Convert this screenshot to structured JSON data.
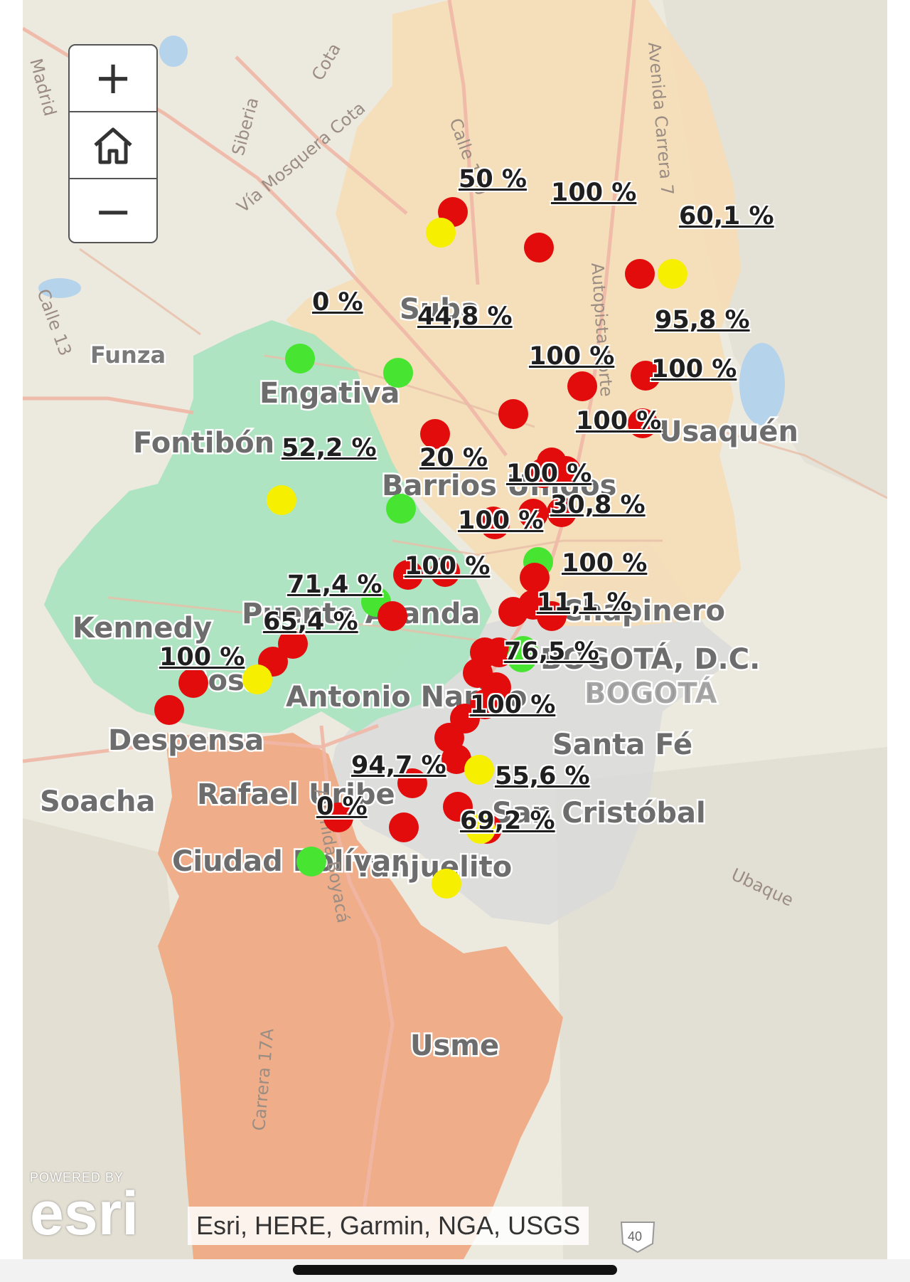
{
  "map": {
    "districts": [
      "Suba",
      "Engativá",
      "Fontibón",
      "Usaquén",
      "Barrios Unidos",
      "Kennedy",
      "Puente Aranda",
      "Chapinero",
      "Antonio Nariño",
      "Santa Fé",
      "Rafael Uribe",
      "San Cristóbal",
      "Tunjuelito",
      "Ciudad Bolívar",
      "Usme",
      "Bosa"
    ],
    "places": [
      "Funza",
      "Soacha",
      "Despensa",
      "BOGOTÁ, D.C.",
      "BOGOTÁ",
      "Ubaque"
    ],
    "roads": [
      "Vía Mosquera Cota",
      "Avenida Carrera 7",
      "Autopista Norte",
      "Avenida Boyacá",
      "Carrera 17A",
      "Calle 170",
      "Calle 13",
      "Siberia",
      "Cota",
      "Madrid"
    ],
    "colors": {
      "red_marker": "#e30c0c",
      "yellow_marker": "#f6f000",
      "green_marker": "#47e531",
      "north_region": "#f6ddb6",
      "west_region": "#a8e3c0",
      "south_region": "#f0a77f",
      "center_region": "#dcdcdc"
    }
  },
  "percent_labels": [
    "50 %",
    "100 %",
    "60,1 %",
    "0 %",
    "44,8 %",
    "95,8 %",
    "100 %",
    "100 %",
    "100 %",
    "52,2 %",
    "20 %",
    "100 %",
    "30,8 %",
    "100 %",
    "100 %",
    "100 %",
    "71,4 %",
    "11,1 %",
    "65,4 %",
    "76,5 %",
    "100 %",
    "100 %",
    "94,7 %",
    "55,6 %",
    "0 %",
    "69,2 %"
  ],
  "markers": [
    {
      "status": "red"
    },
    {
      "status": "yellow"
    },
    {
      "status": "red"
    },
    {
      "status": "red"
    },
    {
      "status": "yellow"
    },
    {
      "status": "green"
    },
    {
      "status": "green"
    },
    {
      "status": "red"
    },
    {
      "status": "red"
    },
    {
      "status": "red"
    },
    {
      "status": "red"
    },
    {
      "status": "red"
    },
    {
      "status": "red"
    },
    {
      "status": "red"
    },
    {
      "status": "red"
    },
    {
      "status": "yellow"
    },
    {
      "status": "green"
    },
    {
      "status": "red"
    },
    {
      "status": "red"
    },
    {
      "status": "red"
    },
    {
      "status": "red"
    },
    {
      "status": "green"
    },
    {
      "status": "red"
    },
    {
      "status": "red"
    },
    {
      "status": "red"
    },
    {
      "status": "green"
    },
    {
      "status": "red"
    },
    {
      "status": "red"
    },
    {
      "status": "red"
    },
    {
      "status": "red"
    },
    {
      "status": "red"
    },
    {
      "status": "red"
    },
    {
      "status": "red"
    },
    {
      "status": "red"
    },
    {
      "status": "yellow"
    },
    {
      "status": "red"
    },
    {
      "status": "red"
    },
    {
      "status": "red"
    },
    {
      "status": "green"
    },
    {
      "status": "green"
    },
    {
      "status": "red"
    },
    {
      "status": "red"
    },
    {
      "status": "red"
    },
    {
      "status": "red"
    },
    {
      "status": "red"
    },
    {
      "status": "red"
    },
    {
      "status": "yellow"
    },
    {
      "status": "red"
    },
    {
      "status": "red"
    },
    {
      "status": "red"
    },
    {
      "status": "red"
    },
    {
      "status": "yellow"
    },
    {
      "status": "green"
    },
    {
      "status": "yellow"
    }
  ],
  "controls": {
    "zoom_in": "+",
    "zoom_out": "−",
    "home_icon": "home-icon"
  },
  "attribution": {
    "powered_by": "POWERED BY",
    "logo": "esri",
    "sources": "Esri, HERE, Garmin, NGA, USGS"
  },
  "route_shield": "40"
}
